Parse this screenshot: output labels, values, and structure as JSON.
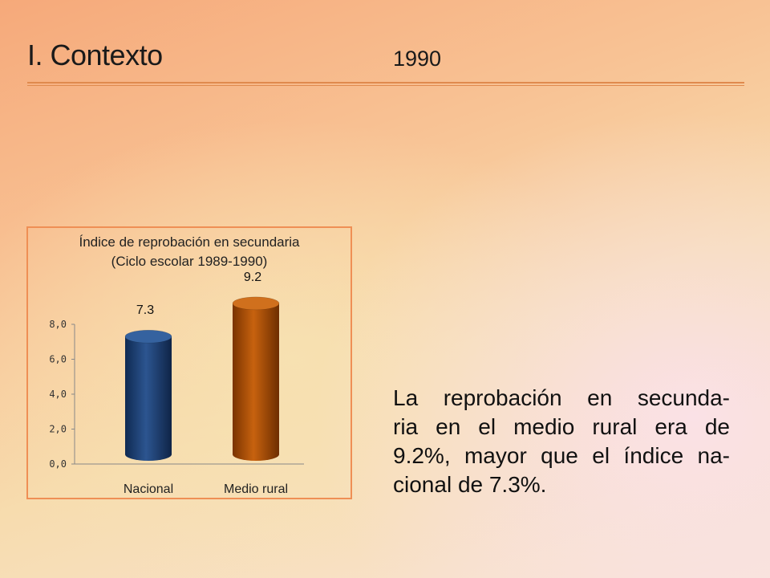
{
  "slide": {
    "title": "I. Contexto",
    "year": "1990",
    "body_lines": [
      "La reprobación en secunda-",
      "ria en el medio rural era de",
      "9.2%, mayor que el índice na-",
      "cional de 7.3%."
    ]
  },
  "colors": {
    "accent_rule": "#e08a4e",
    "chart_border": "#ef8f55",
    "bar_nacional": "#1f3d6b",
    "bar_rural": "#a14a08"
  },
  "chart_data": {
    "type": "bar",
    "title": "Índice de reprobación en secundaria",
    "subtitle": "(Ciclo escolar 1989-1990)",
    "categories": [
      "Nacional",
      "Medio rural"
    ],
    "values": [
      7.3,
      9.2
    ],
    "data_labels": [
      "7.3",
      "9.2"
    ],
    "ylim": [
      0,
      8
    ],
    "yticks": [
      "0,0",
      "2,0",
      "4,0",
      "6,0",
      "8,0"
    ],
    "grid": false,
    "legend": false
  }
}
